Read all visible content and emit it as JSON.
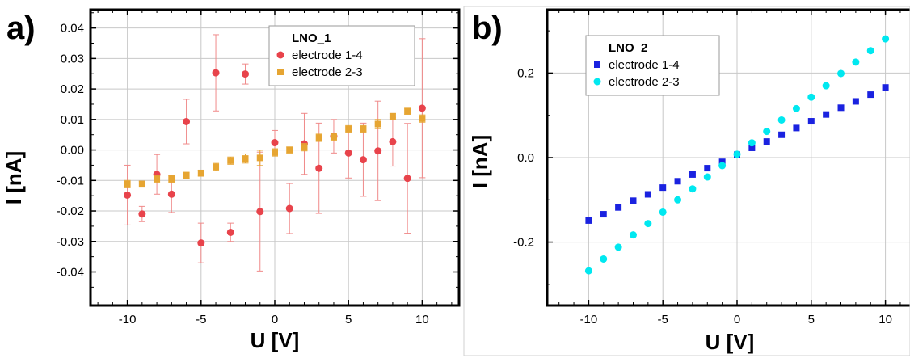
{
  "chart_data": [
    {
      "type": "scatter",
      "panel_label": "a)",
      "legend_title": "LNO_1",
      "legend_position": "top-right",
      "xlabel": "U   [V]",
      "ylabel": "I   [nA]",
      "xlim": [
        -12.5,
        12.5
      ],
      "ylim": [
        -0.051,
        0.046
      ],
      "xticks": [
        -10,
        -5,
        0,
        5,
        10
      ],
      "xtick_labels": [
        "-10",
        "-5",
        "0",
        "5",
        "10"
      ],
      "yticks": [
        -0.04,
        -0.03,
        -0.02,
        -0.01,
        0.0,
        0.01,
        0.02,
        0.03,
        0.04
      ],
      "ytick_labels": [
        "-0.04",
        "-0.03",
        "-0.02",
        "-0.01",
        "0.00",
        "0.01",
        "0.02",
        "0.03",
        "0.04"
      ],
      "grid": true,
      "series": [
        {
          "name": "electrode 1-4",
          "marker": "circle",
          "color": "#e8434b",
          "errbar_color": "#f08a8a",
          "x": [
            -10,
            -9,
            -8,
            -7,
            -6,
            -5,
            -4,
            -3,
            -2,
            -1,
            0,
            1,
            2,
            3,
            4,
            5,
            6,
            7,
            8,
            9,
            10
          ],
          "y": [
            -0.0148,
            -0.021,
            -0.008,
            -0.0145,
            0.0093,
            -0.0305,
            0.0253,
            -0.027,
            0.0249,
            -0.0202,
            0.0024,
            -0.0192,
            0.002,
            -0.006,
            0.0045,
            -0.001,
            -0.0032,
            -0.0003,
            0.0027,
            -0.0093,
            0.0137
          ],
          "err": [
            0.0098,
            0.0025,
            0.0065,
            0.006,
            0.0073,
            0.0065,
            0.0125,
            0.003,
            0.0033,
            0.0195,
            0.004,
            0.0082,
            0.01,
            0.0148,
            0.0055,
            0.0082,
            0.012,
            0.0163,
            0.008,
            0.018,
            0.0228
          ]
        },
        {
          "name": "electrode 2-3",
          "marker": "square",
          "color": "#e6a532",
          "errbar_color": "#e6a532",
          "x": [
            -10,
            -9,
            -8,
            -7,
            -6,
            -5,
            -4,
            -3,
            -2,
            -1,
            0,
            1,
            2,
            3,
            4,
            5,
            6,
            7,
            8,
            9,
            10
          ],
          "y": [
            -0.0112,
            -0.0112,
            -0.0096,
            -0.0094,
            -0.0083,
            -0.0076,
            -0.0056,
            -0.0035,
            -0.0028,
            -0.0026,
            -0.0008,
            0.0,
            0.0009,
            0.004,
            0.0042,
            0.0068,
            0.0068,
            0.0085,
            0.011,
            0.0127,
            0.0103
          ],
          "err": [
            0.0012,
            0.001,
            0.0012,
            0.0012,
            0.001,
            0.001,
            0.0012,
            0.0012,
            0.0015,
            0.0025,
            0.0012,
            0.001,
            0.0012,
            0.0012,
            0.0012,
            0.0012,
            0.0012,
            0.0015,
            0.001,
            0.001,
            0.0012
          ]
        }
      ]
    },
    {
      "type": "scatter",
      "panel_label": "b)",
      "legend_title": "LNO_2",
      "legend_position": "top-left",
      "xlabel": "U   [V]",
      "ylabel": "I   [nA]",
      "xlim": [
        -12.8,
        12.8
      ],
      "ylim": [
        -0.35,
        0.35
      ],
      "xticks": [
        -10,
        -5,
        0,
        5,
        10
      ],
      "xtick_labels": [
        "-10",
        "-5",
        "0",
        "5",
        "10"
      ],
      "yticks": [
        -0.2,
        0.0,
        0.2
      ],
      "ytick_labels": [
        "-0.2",
        "0.0",
        "0.2"
      ],
      "grid": true,
      "series": [
        {
          "name": "electrode 1-4",
          "marker": "square",
          "color": "#1a22e0",
          "x": [
            -10,
            -9,
            -8,
            -7,
            -6,
            -5,
            -4,
            -3,
            -2,
            -1,
            0,
            1,
            2,
            3,
            4,
            5,
            6,
            7,
            8,
            9,
            10
          ],
          "y": [
            -0.149,
            -0.134,
            -0.118,
            -0.102,
            -0.087,
            -0.071,
            -0.056,
            -0.04,
            -0.025,
            -0.01,
            0.007,
            0.023,
            0.038,
            0.054,
            0.07,
            0.086,
            0.102,
            0.118,
            0.133,
            0.149,
            0.166
          ]
        },
        {
          "name": "electrode 2-3",
          "marker": "circle",
          "color": "#00e8f0",
          "x": [
            -10,
            -9,
            -8,
            -7,
            -6,
            -5,
            -4,
            -3,
            -2,
            -1,
            0,
            1,
            2,
            3,
            4,
            5,
            6,
            7,
            8,
            9,
            10
          ],
          "y": [
            -0.268,
            -0.24,
            -0.212,
            -0.183,
            -0.156,
            -0.129,
            -0.1,
            -0.074,
            -0.046,
            -0.019,
            0.008,
            0.035,
            0.062,
            0.089,
            0.116,
            0.143,
            0.17,
            0.199,
            0.226,
            0.253,
            0.281
          ]
        }
      ]
    }
  ]
}
